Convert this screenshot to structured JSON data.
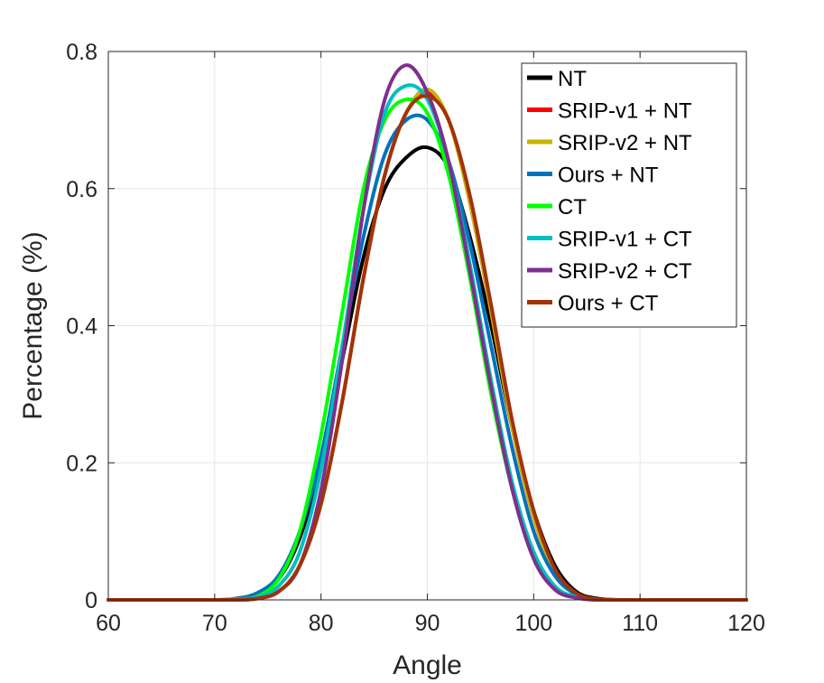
{
  "chart_data": {
    "type": "line",
    "title": "",
    "xlabel": "Angle",
    "ylabel": "Percentage (%)",
    "xlim": [
      60,
      120
    ],
    "ylim": [
      0,
      0.8
    ],
    "xticks": [
      60,
      70,
      80,
      90,
      100,
      110,
      120
    ],
    "xtick_labels": [
      "60",
      "70",
      "80",
      "90",
      "100",
      "110",
      "120"
    ],
    "yticks": [
      0,
      0.2,
      0.4,
      0.6,
      0.8
    ],
    "ytick_labels": [
      "0",
      "0.2",
      "0.4",
      "0.6",
      "0.8"
    ],
    "grid": true,
    "legend_position": "top-right",
    "x": [
      60,
      70,
      72,
      74,
      76,
      78,
      80,
      82,
      84,
      86,
      88,
      90,
      92,
      94,
      96,
      98,
      100,
      102,
      104,
      106,
      108,
      110,
      120
    ],
    "series": [
      {
        "name": "NT",
        "color": "#000000",
        "values": [
          0,
          0,
          0.002,
          0.008,
          0.03,
          0.09,
          0.2,
          0.35,
          0.5,
          0.6,
          0.645,
          0.66,
          0.63,
          0.53,
          0.4,
          0.25,
          0.13,
          0.05,
          0.012,
          0.002,
          0,
          0,
          0
        ]
      },
      {
        "name": "SRIP-v1 + NT",
        "color": "#ff0000",
        "values": [
          0,
          0,
          0,
          0.002,
          0.012,
          0.05,
          0.14,
          0.29,
          0.47,
          0.62,
          0.71,
          0.74,
          0.7,
          0.58,
          0.42,
          0.25,
          0.12,
          0.04,
          0.008,
          0.001,
          0,
          0,
          0
        ]
      },
      {
        "name": "SRIP-v2 + NT",
        "color": "#c8b400",
        "values": [
          0,
          0,
          0,
          0.002,
          0.012,
          0.05,
          0.14,
          0.29,
          0.47,
          0.62,
          0.71,
          0.745,
          0.7,
          0.58,
          0.42,
          0.25,
          0.12,
          0.04,
          0.008,
          0.001,
          0,
          0,
          0
        ]
      },
      {
        "name": "Ours + NT",
        "color": "#0072bd",
        "values": [
          0,
          0,
          0.002,
          0.01,
          0.035,
          0.1,
          0.21,
          0.37,
          0.53,
          0.65,
          0.7,
          0.7,
          0.64,
          0.52,
          0.37,
          0.22,
          0.1,
          0.035,
          0.008,
          0.001,
          0,
          0,
          0
        ]
      },
      {
        "name": "CT",
        "color": "#00ff00",
        "values": [
          0,
          0,
          0.001,
          0.005,
          0.03,
          0.1,
          0.24,
          0.42,
          0.6,
          0.7,
          0.73,
          0.71,
          0.62,
          0.47,
          0.3,
          0.16,
          0.06,
          0.015,
          0.003,
          0,
          0,
          0,
          0
        ]
      },
      {
        "name": "SRIP-v1 + CT",
        "color": "#00bfbf",
        "values": [
          0,
          0,
          0.001,
          0.004,
          0.02,
          0.07,
          0.19,
          0.37,
          0.57,
          0.71,
          0.75,
          0.73,
          0.64,
          0.49,
          0.32,
          0.17,
          0.07,
          0.02,
          0.004,
          0,
          0,
          0,
          0
        ]
      },
      {
        "name": "SRIP-v2 + CT",
        "color": "#7e2f8e",
        "values": [
          0,
          0,
          0,
          0.002,
          0.012,
          0.05,
          0.16,
          0.35,
          0.57,
          0.73,
          0.78,
          0.74,
          0.64,
          0.48,
          0.31,
          0.16,
          0.06,
          0.015,
          0.003,
          0,
          0,
          0,
          0
        ]
      },
      {
        "name": "Ours + CT",
        "color": "#a2320a",
        "values": [
          0,
          0,
          0,
          0.002,
          0.012,
          0.05,
          0.14,
          0.29,
          0.47,
          0.62,
          0.71,
          0.735,
          0.7,
          0.59,
          0.43,
          0.26,
          0.13,
          0.045,
          0.01,
          0.001,
          0,
          0,
          0
        ]
      }
    ]
  }
}
